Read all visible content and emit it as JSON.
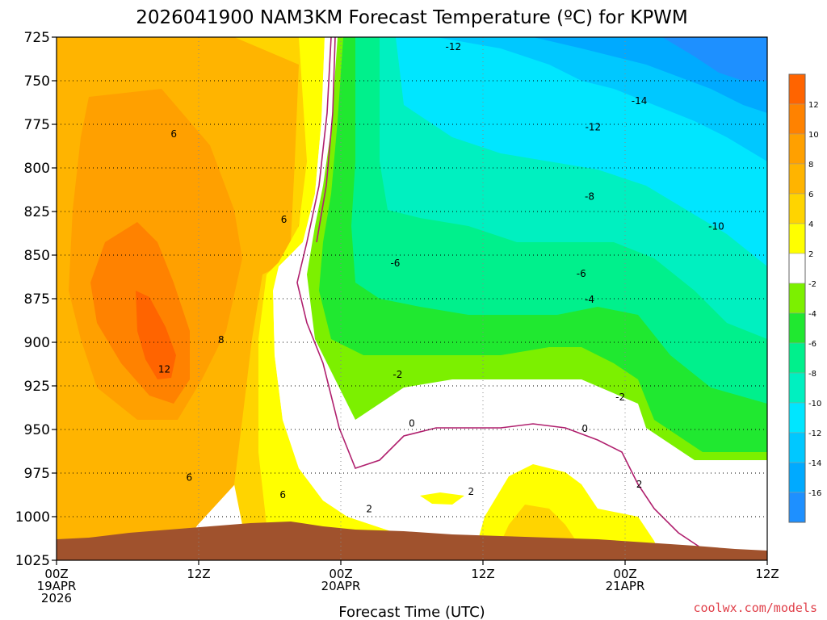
{
  "chart_data": {
    "type": "heatmap",
    "title": "2026041900 NAM3KM Forecast Temperature (ºC) for KPWM",
    "xlabel": "Forecast Time (UTC)",
    "ylabel": "",
    "x_hours_range": [
      0,
      60
    ],
    "y_pressure_range": [
      725,
      1025
    ],
    "y_ticks": [
      725,
      750,
      775,
      800,
      825,
      850,
      875,
      900,
      925,
      950,
      975,
      1000,
      1025
    ],
    "x_ticks": [
      {
        "hour": 0,
        "lines": [
          "00Z",
          "19APR",
          "2026"
        ]
      },
      {
        "hour": 12,
        "lines": [
          "12Z"
        ]
      },
      {
        "hour": 24,
        "lines": [
          "00Z",
          "20APR"
        ]
      },
      {
        "hour": 36,
        "lines": [
          "12Z"
        ]
      },
      {
        "hour": 48,
        "lines": [
          "00Z",
          "21APR"
        ]
      },
      {
        "hour": 60,
        "lines": [
          "12Z"
        ]
      }
    ],
    "colorbar": {
      "bins": [
        {
          "lo": -18,
          "hi": -16,
          "color": "#1e90ff"
        },
        {
          "lo": -16,
          "hi": -14,
          "color": "#00aaff"
        },
        {
          "lo": -14,
          "hi": -12,
          "color": "#00c8ff"
        },
        {
          "lo": -12,
          "hi": -10,
          "color": "#00e6ff"
        },
        {
          "lo": -10,
          "hi": -8,
          "color": "#00f0c0"
        },
        {
          "lo": -8,
          "hi": -6,
          "color": "#00f08c"
        },
        {
          "lo": -6,
          "hi": -4,
          "color": "#20e830"
        },
        {
          "lo": -4,
          "hi": -2,
          "color": "#7cf000"
        },
        {
          "lo": -2,
          "hi": 2,
          "color": "#ffffff"
        },
        {
          "lo": 2,
          "hi": 4,
          "color": "#ffff00"
        },
        {
          "lo": 4,
          "hi": 6,
          "color": "#ffd400"
        },
        {
          "lo": 6,
          "hi": 8,
          "color": "#ffb400"
        },
        {
          "lo": 8,
          "hi": 10,
          "color": "#ffa000"
        },
        {
          "lo": 10,
          "hi": 12,
          "color": "#ff8200"
        },
        {
          "lo": 12,
          "hi": 14,
          "color": "#ff6400"
        }
      ],
      "labels": [
        "12",
        "10",
        "8",
        "6",
        "4",
        "2",
        "-2",
        "-4",
        "-6",
        "-8",
        "-10",
        "-12",
        "-14",
        "-16"
      ]
    },
    "terrain_color": "#a0522d",
    "zero_line_color": "#b0206e",
    "contour_labels": [
      {
        "text": "-12",
        "hour": 33.5,
        "p": 731
      },
      {
        "text": "-14",
        "hour": 49.2,
        "p": 762
      },
      {
        "text": "-12",
        "hour": 45.3,
        "p": 777
      },
      {
        "text": "-8",
        "hour": 45.0,
        "p": 817
      },
      {
        "text": "-10",
        "hour": 55.7,
        "p": 834
      },
      {
        "text": "-6",
        "hour": 28.6,
        "p": 855
      },
      {
        "text": "-6",
        "hour": 44.3,
        "p": 861
      },
      {
        "text": "-4",
        "hour": 45.0,
        "p": 876
      },
      {
        "text": "-2",
        "hour": 28.8,
        "p": 919
      },
      {
        "text": "-2",
        "hour": 47.6,
        "p": 932
      },
      {
        "text": "0",
        "hour": 30.0,
        "p": 947
      },
      {
        "text": "0",
        "hour": 44.6,
        "p": 950
      },
      {
        "text": "2",
        "hour": 26.4,
        "p": 996
      },
      {
        "text": "2",
        "hour": 35.0,
        "p": 986
      },
      {
        "text": "2",
        "hour": 49.2,
        "p": 982
      },
      {
        "text": "6",
        "hour": 9.9,
        "p": 781
      },
      {
        "text": "6",
        "hour": 19.2,
        "p": 830
      },
      {
        "text": "8",
        "hour": 13.9,
        "p": 899
      },
      {
        "text": "12",
        "hour": 9.1,
        "p": 916
      },
      {
        "text": "6",
        "hour": 11.2,
        "p": 978
      },
      {
        "text": "6",
        "hour": 19.1,
        "p": 988
      }
    ]
  },
  "credit": "coolwx.com/models"
}
